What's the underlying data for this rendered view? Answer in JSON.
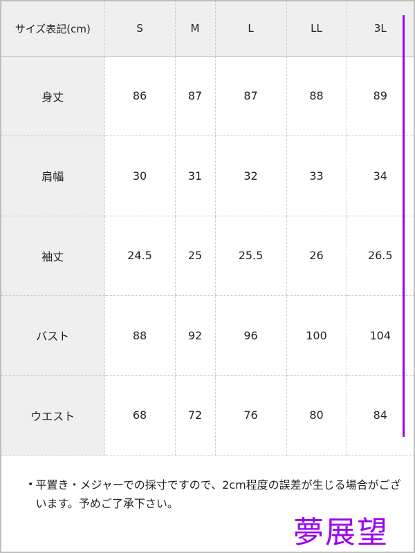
{
  "table": {
    "header": [
      "サイズ表記(cm)",
      "S",
      "M",
      "L",
      "LL",
      "3L"
    ],
    "rows": [
      {
        "label": "身丈",
        "values": [
          "86",
          "87",
          "87",
          "88",
          "89"
        ]
      },
      {
        "label": "肩幅",
        "values": [
          "30",
          "31",
          "32",
          "33",
          "34"
        ]
      },
      {
        "label": "袖丈",
        "values": [
          "24.5",
          "25",
          "25.5",
          "26",
          "26.5"
        ]
      },
      {
        "label": "バスト",
        "values": [
          "88",
          "92",
          "96",
          "100",
          "104"
        ]
      },
      {
        "label": "ウエスト",
        "values": [
          "68",
          "72",
          "76",
          "80",
          "84"
        ]
      }
    ]
  },
  "note": "平置き・メジャーでの採寸ですので、2cm程度の誤差が生じる場合がございます。予めご了承下さい。",
  "watermark": "夢展望",
  "colors": {
    "accent": "#9b00f0",
    "header_bg": "#efefef"
  }
}
